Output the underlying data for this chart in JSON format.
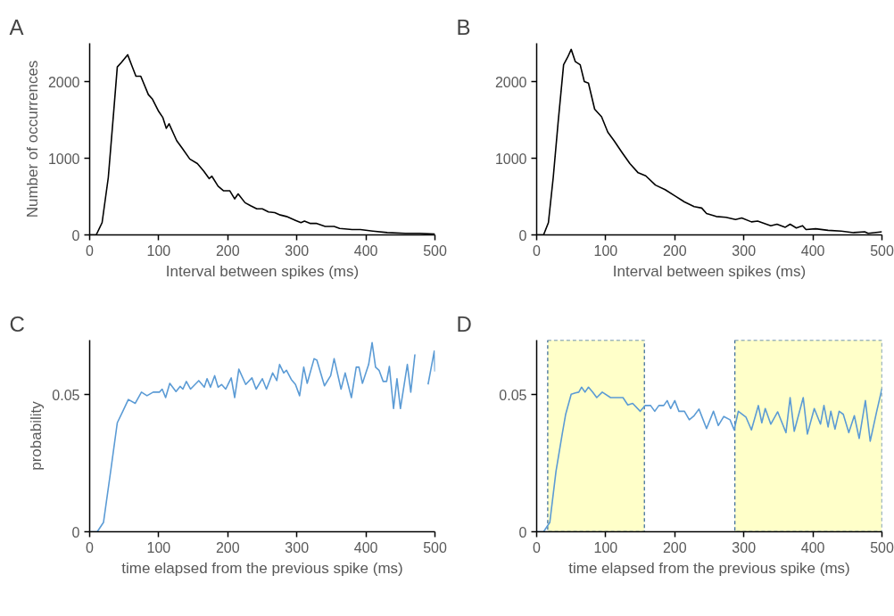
{
  "chart_data": [
    {
      "type": "line",
      "title": "A",
      "xlabel": "Interval between spikes (ms)",
      "ylabel": "Number of occurrences",
      "xlim": [
        0,
        500
      ],
      "ylim": [
        0,
        2500
      ],
      "xticks": [
        0,
        100,
        200,
        300,
        400,
        500
      ],
      "yticks": [
        0,
        1000,
        2000
      ],
      "x": [
        0,
        9.5,
        18,
        27,
        35,
        40,
        46,
        55,
        61,
        67,
        74,
        85,
        91,
        100,
        106,
        111,
        115,
        126,
        134,
        145,
        156,
        165,
        173,
        177,
        186,
        194,
        203,
        210,
        215,
        225,
        233,
        242,
        250,
        259,
        268,
        276,
        285,
        298,
        306,
        311,
        319,
        328,
        341,
        354,
        362,
        380,
        392,
        410,
        431,
        457,
        478,
        500
      ],
      "series": [
        {
          "color": "#000000",
          "values": [
            0,
            0,
            160,
            750,
            1630,
            2190,
            2250,
            2350,
            2210,
            2070,
            2070,
            1830,
            1770,
            1610,
            1530,
            1390,
            1450,
            1230,
            1130,
            990,
            930,
            835,
            735,
            765,
            635,
            575,
            575,
            470,
            535,
            420,
            380,
            340,
            340,
            300,
            290,
            260,
            240,
            190,
            160,
            180,
            150,
            150,
            110,
            110,
            85,
            70,
            70,
            50,
            30,
            20,
            20,
            10
          ]
        }
      ]
    },
    {
      "type": "line",
      "title": "B",
      "xlabel": "Interval between spikes (ms)",
      "xlim": [
        0,
        500
      ],
      "ylim": [
        0,
        2500
      ],
      "xticks": [
        0,
        100,
        200,
        300,
        400,
        500
      ],
      "yticks": [
        0,
        1000,
        2000
      ],
      "x": [
        0,
        10,
        17,
        24,
        31,
        39,
        45,
        50,
        56,
        63,
        69,
        75,
        84,
        94,
        103,
        112,
        124,
        135,
        147,
        158,
        172,
        186,
        200,
        214,
        228,
        239,
        246,
        260,
        274,
        288,
        297,
        311,
        320,
        339,
        348,
        360,
        367,
        376,
        385,
        390,
        404,
        422,
        441,
        459,
        475,
        480,
        500
      ],
      "series": [
        {
          "color": "#000000",
          "values": [
            0,
            0,
            160,
            750,
            1460,
            2220,
            2320,
            2420,
            2260,
            2220,
            2000,
            1980,
            1640,
            1540,
            1340,
            1230,
            1070,
            930,
            810,
            770,
            650,
            590,
            510,
            430,
            370,
            350,
            280,
            240,
            230,
            200,
            220,
            170,
            180,
            120,
            140,
            100,
            140,
            90,
            120,
            70,
            80,
            60,
            50,
            30,
            40,
            20,
            40
          ]
        }
      ]
    },
    {
      "type": "line",
      "title": "C",
      "xlabel": "time elapsed from the previous spike (ms)",
      "ylabel": "probability",
      "xlim": [
        0,
        500
      ],
      "ylim": [
        0,
        0.07
      ],
      "xticks": [
        0,
        100,
        200,
        300,
        400,
        500
      ],
      "yticks": [
        0,
        0.05
      ],
      "x": [
        0,
        11,
        20,
        31,
        40,
        48,
        56,
        66,
        75,
        83,
        92,
        101,
        105,
        110,
        116,
        125,
        131,
        135,
        140,
        146,
        158,
        166,
        170,
        175,
        181,
        186,
        191,
        197,
        205,
        210,
        216,
        226,
        235,
        241,
        250,
        256,
        265,
        271,
        275,
        281,
        285,
        292,
        298,
        304,
        310,
        315,
        325,
        329,
        340,
        349,
        354,
        364,
        370,
        379,
        386,
        390,
        395,
        404,
        409,
        414,
        419,
        425,
        430,
        434,
        440,
        445,
        450,
        460,
        465,
        471,
        476,
        482,
        490,
        499,
        500
      ],
      "series": [
        {
          "color": "#5b9bd5",
          "values": [
            0,
            0,
            0.0034,
            0.0232,
            0.0398,
            0.044,
            0.0483,
            0.0469,
            0.051,
            0.0497,
            0.051,
            0.051,
            0.0521,
            0.049,
            0.0542,
            0.0512,
            0.0531,
            0.0521,
            0.0549,
            0.0521,
            0.0552,
            0.0528,
            0.0559,
            0.0528,
            0.057,
            0.0528,
            0.0538,
            0.0521,
            0.0562,
            0.049,
            0.0594,
            0.0538,
            0.0562,
            0.0521,
            0.0559,
            0.0521,
            0.058,
            0.0552,
            0.0611,
            0.058,
            0.059,
            0.0556,
            0.0538,
            0.0497,
            0.0601,
            0.0542,
            0.0632,
            0.0627,
            0.0533,
            0.057,
            0.0632,
            0.0521,
            0.058,
            0.049,
            0.0601,
            0.0601,
            0.0542,
            0.0611,
            0.0691,
            0.0601,
            0.059,
            0.0549,
            0.0549,
            0.0604,
            0.045,
            0.0559,
            0.045,
            0.0611,
            0.051,
            0.0648,
            null,
            null,
            0.0538,
            0.066,
            0.0585
          ]
        }
      ]
    },
    {
      "type": "line",
      "title": "D",
      "xlabel": "time elapsed from the previous spike (ms)",
      "xlim": [
        0,
        500
      ],
      "ylim": [
        0,
        0.07
      ],
      "xticks": [
        0,
        100,
        200,
        300,
        400,
        500
      ],
      "yticks": [
        0,
        0.05
      ],
      "bands": [
        {
          "axis": "x",
          "from": 16,
          "to": 156,
          "color": "#ffffc0"
        },
        {
          "axis": "x",
          "from": 287,
          "to": 500,
          "color": "#ffffc0"
        }
      ],
      "x": [
        0,
        10,
        19,
        28,
        37,
        42,
        50,
        56,
        61,
        65,
        70,
        75,
        81,
        87,
        95,
        107,
        125,
        132,
        139,
        150,
        157,
        165,
        171,
        177,
        184,
        189,
        194,
        200,
        206,
        214,
        221,
        228,
        235,
        246,
        256,
        263,
        271,
        280,
        286,
        292,
        303,
        311,
        321,
        326,
        331,
        339,
        349,
        361,
        367,
        373,
        386,
        392,
        402,
        411,
        416,
        422,
        426,
        432,
        438,
        444,
        452,
        460,
        467,
        476,
        483,
        492,
        500
      ],
      "series": [
        {
          "color": "#5b9bd5",
          "values": [
            0,
            0,
            0.0034,
            0.0221,
            0.0357,
            0.0429,
            0.0502,
            0.0507,
            0.051,
            0.0528,
            0.051,
            0.0528,
            0.051,
            0.049,
            0.051,
            0.049,
            0.049,
            0.0463,
            0.0469,
            0.044,
            0.0461,
            0.0461,
            0.044,
            0.0461,
            0.0461,
            0.0479,
            0.045,
            0.0479,
            0.044,
            0.044,
            0.0409,
            0.0424,
            0.0448,
            0.0377,
            0.044,
            0.0388,
            0.0421,
            0.0409,
            0.0372,
            0.044,
            0.0419,
            0.0372,
            0.0461,
            0.0398,
            0.045,
            0.0393,
            0.0438,
            0.0362,
            0.049,
            0.0367,
            0.049,
            0.0357,
            0.045,
            0.0393,
            0.0461,
            0.0383,
            0.044,
            0.0375,
            0.044,
            0.0429,
            0.0362,
            0.0424,
            0.0341,
            0.0479,
            0.0331,
            0.0435,
            0.0523
          ]
        }
      ]
    }
  ]
}
